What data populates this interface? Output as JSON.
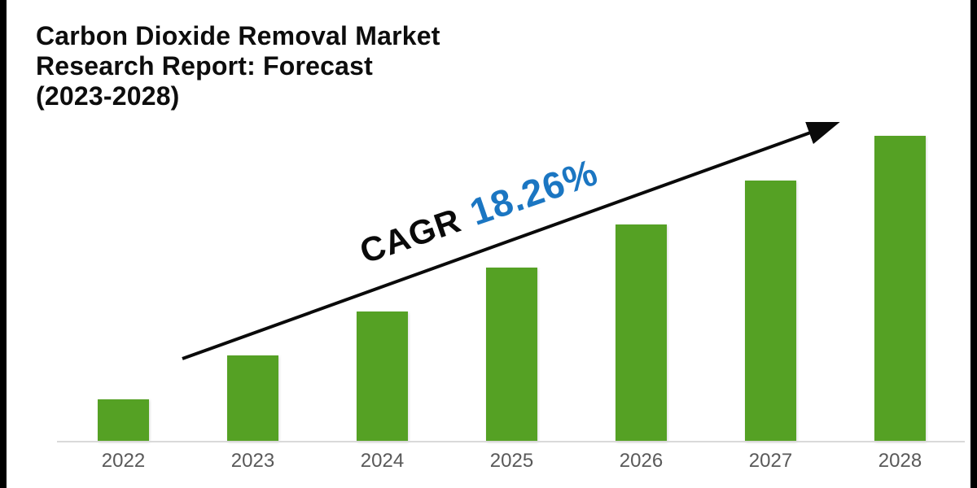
{
  "title": {
    "line1": "Carbon Dioxide Removal Market",
    "line2": "Research Report: Forecast",
    "line3": "(2023-2028)"
  },
  "annotation": {
    "label": "CAGR",
    "value": "18.26%"
  },
  "chart_data": {
    "type": "bar",
    "title": "Carbon Dioxide Removal Market Research Report: Forecast (2023-2028)",
    "categories": [
      "2022",
      "2023",
      "2024",
      "2025",
      "2026",
      "2027",
      "2028"
    ],
    "values": [
      13.8,
      28.2,
      42.6,
      56.9,
      71.0,
      85.4,
      100.0
    ],
    "ylim": [
      0,
      100
    ],
    "xlabel": "",
    "ylabel": "",
    "grid": false,
    "y_axis_shown": false,
    "legend": "none",
    "annotation": "CAGR 18.26%",
    "bar_color": "#55a124",
    "annotation_value_color": "#1b76c2",
    "annotation_label_color": "#0a0a0a",
    "axis_line_color": "#d9d9d9",
    "tick_label_color": "#595959"
  }
}
